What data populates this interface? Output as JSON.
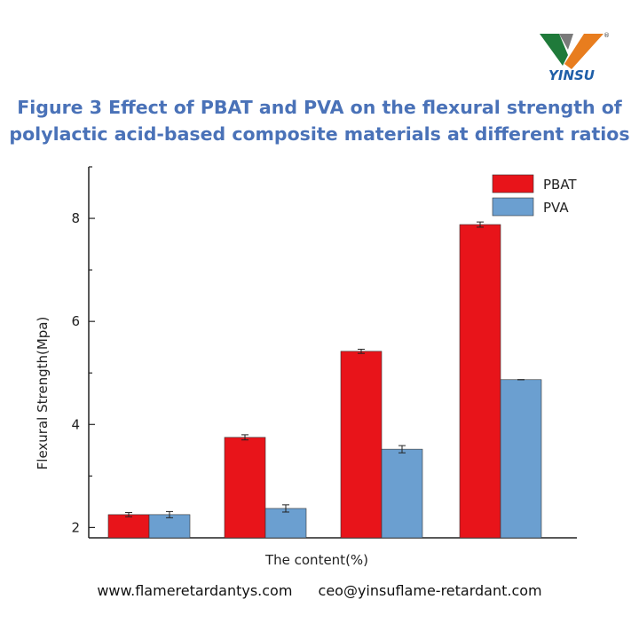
{
  "logo": {
    "text": "YINSU",
    "registered": "®"
  },
  "title": {
    "line1": "Figure 3 Effect of PBAT and PVA on the flexural strength of",
    "line2": "polylactic acid-based composite materials at different ratios"
  },
  "chart_data": {
    "type": "bar",
    "categories": [
      "",
      "",
      "",
      ""
    ],
    "series": [
      {
        "name": "PBAT",
        "color": "#e8141a",
        "values": [
          2.25,
          3.75,
          5.42,
          7.88
        ],
        "errors": [
          0.04,
          0.05,
          0.04,
          0.05
        ]
      },
      {
        "name": "PVA",
        "color": "#6b9fd0",
        "values": [
          2.25,
          2.37,
          3.52,
          4.87
        ],
        "errors": [
          0.06,
          0.07,
          0.07,
          0.0
        ]
      }
    ],
    "title": "",
    "xlabel": "The content(%)",
    "ylabel": "Flexural Strength(Mpa)",
    "ylim": [
      1.8,
      9.0
    ],
    "yticks": [
      2,
      4,
      6,
      8
    ],
    "legend_position": "top-right"
  },
  "footer": {
    "website": "www.flameretardantys.com",
    "email": "ceo@yinsuflame-retardant.com"
  }
}
